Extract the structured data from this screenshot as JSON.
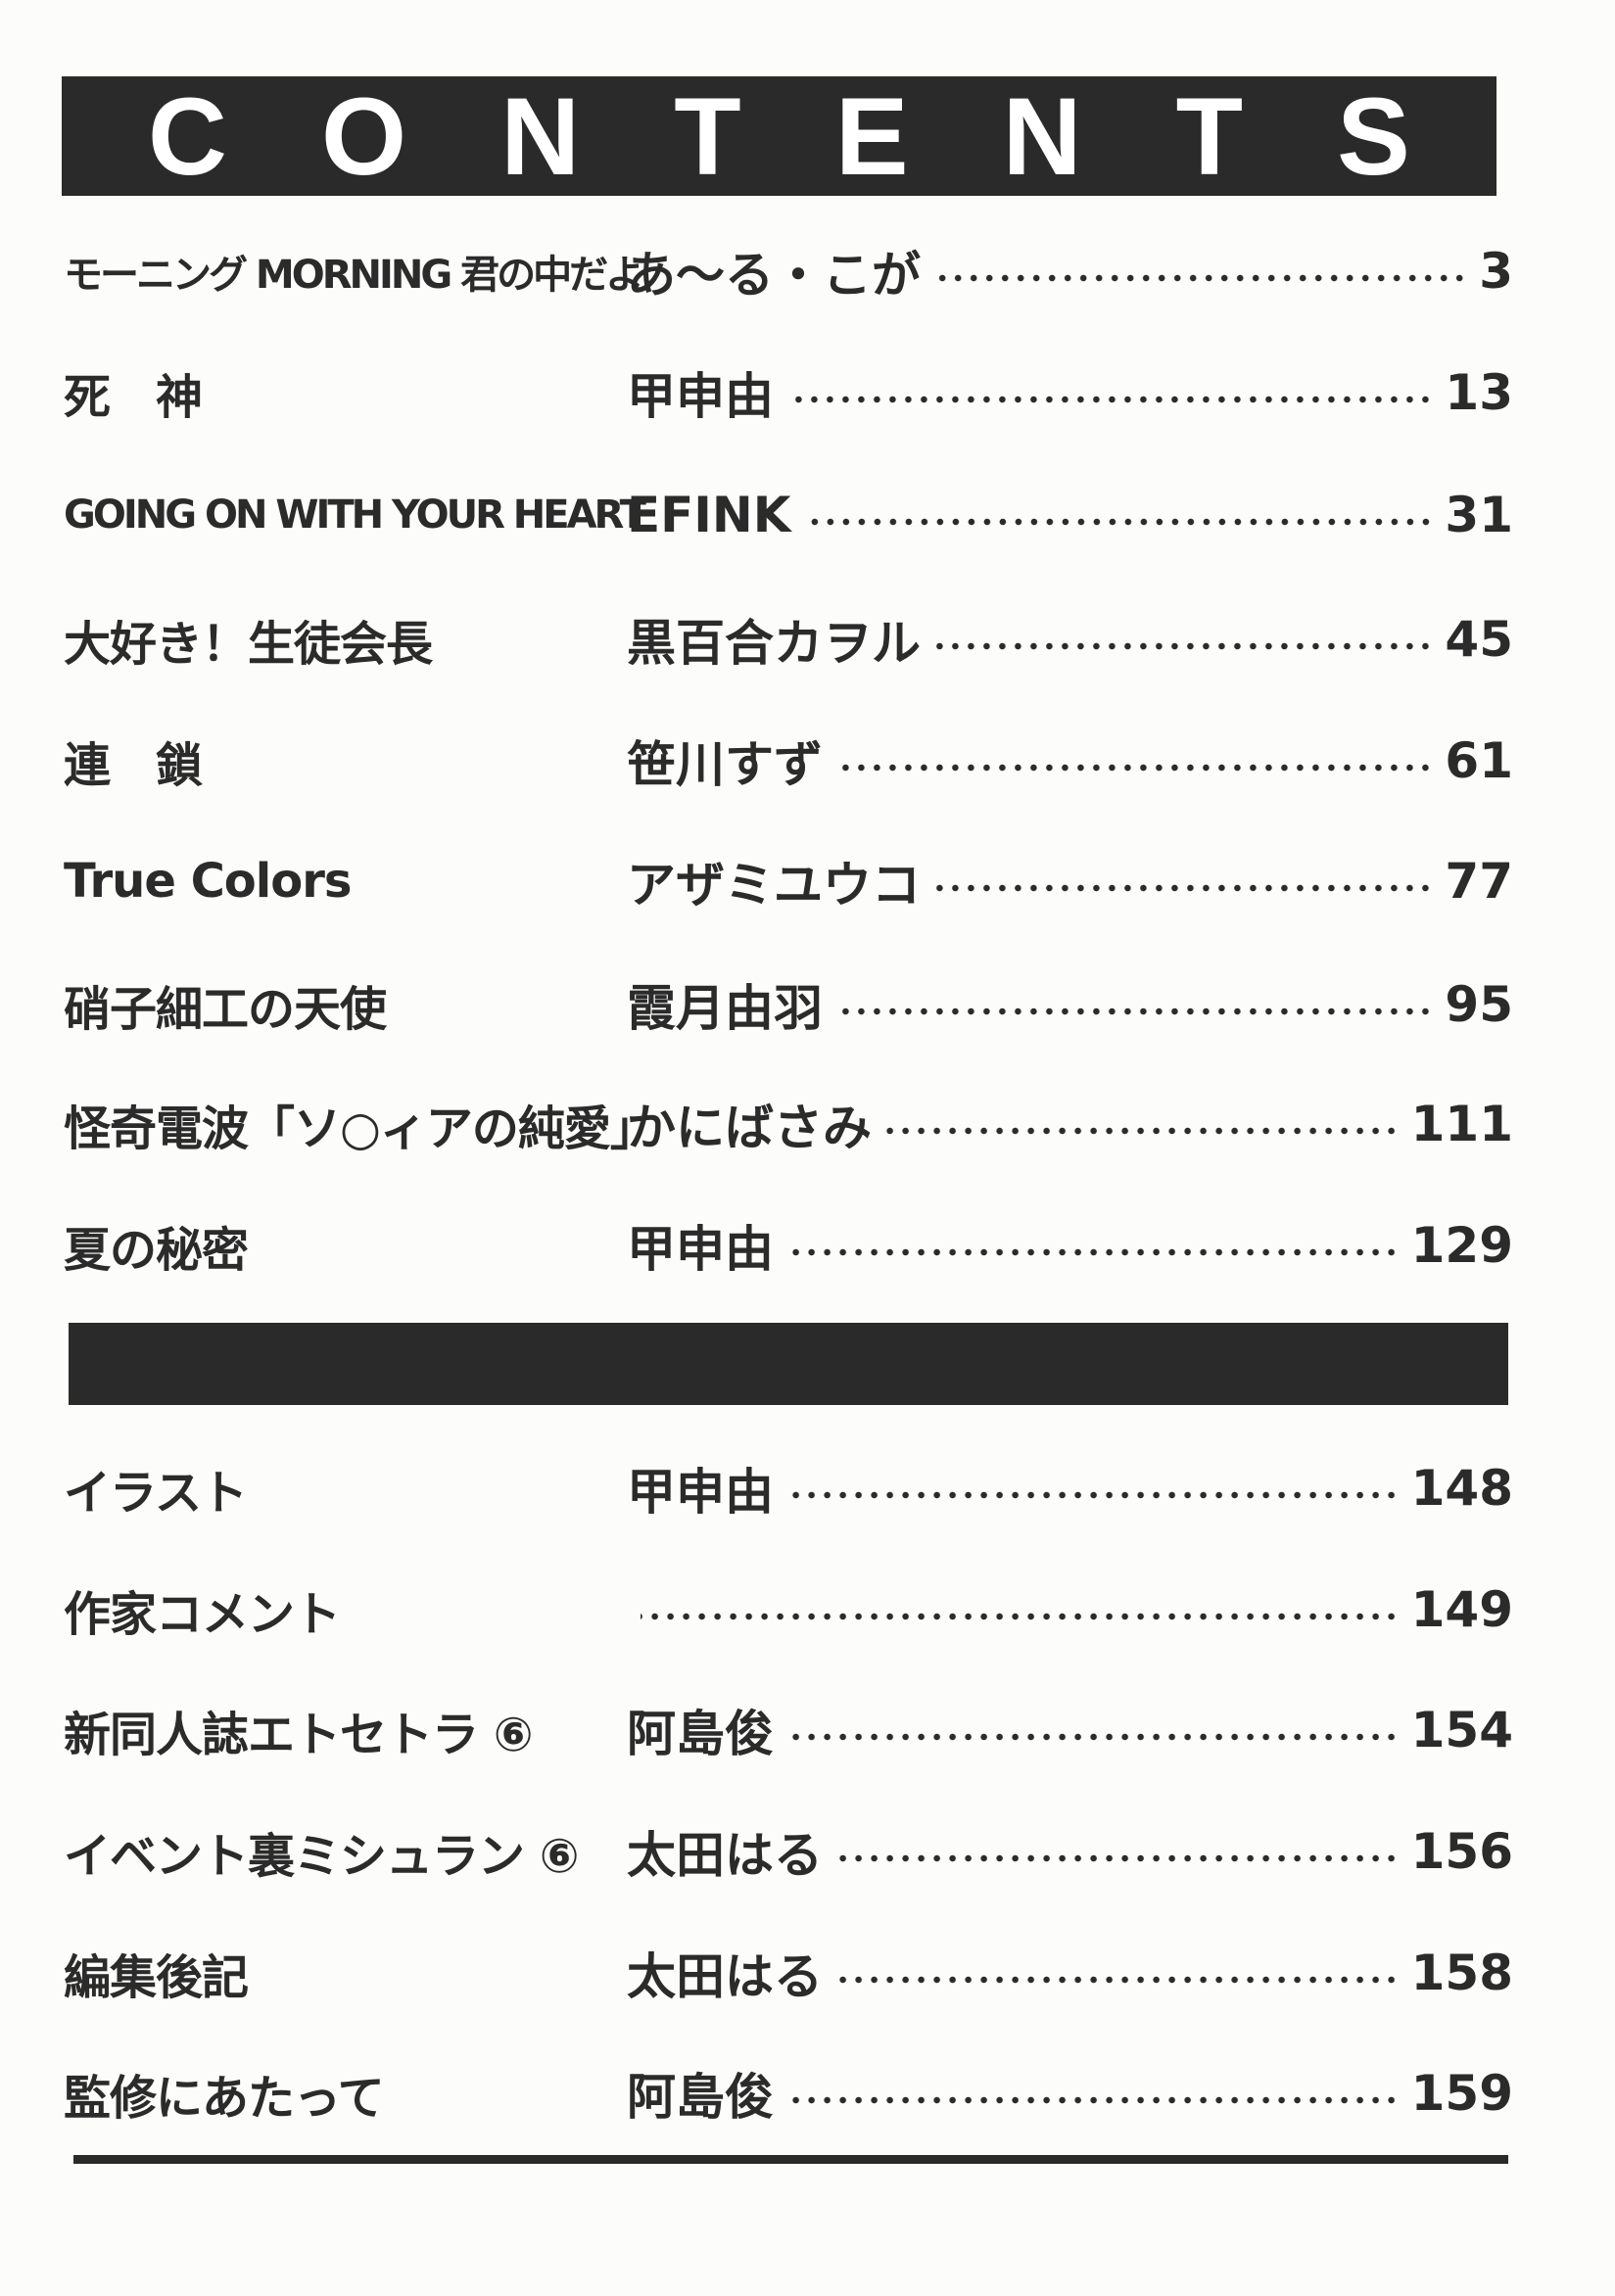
{
  "header": {
    "title_letters": [
      "C",
      "O",
      "N",
      "T",
      "E",
      "N",
      "T",
      "S"
    ]
  },
  "contents": [
    {
      "title": "モーニング MORNING 君の中だよ",
      "author": "あ～る・こが",
      "page": "3"
    },
    {
      "title": "死　神",
      "author": "甲申由",
      "page": "13"
    },
    {
      "title": "GOING ON WITH YOUR HEART",
      "author": "EFINK",
      "page": "31"
    },
    {
      "title": "大好き！生徒会長",
      "author": "黒百合カヲル",
      "page": "45"
    },
    {
      "title": "連　鎖",
      "author": "笹川すず",
      "page": "61"
    },
    {
      "title": "True Colors",
      "author": "アザミユウコ",
      "page": "77"
    },
    {
      "title": "硝子細工の天使",
      "author": "霞月由羽",
      "page": "95"
    },
    {
      "title": "怪奇電波「ソ○ィアの純愛」",
      "author": "かにばさみ",
      "page": "111"
    },
    {
      "title": "夏の秘密",
      "author": "甲申由",
      "page": "129"
    }
  ],
  "extras": [
    {
      "title": "イラスト",
      "author": "甲申由",
      "page": "148"
    },
    {
      "title": "作家コメント",
      "author": "",
      "page": "149"
    },
    {
      "title": "新同人誌エトセトラ ⑥",
      "author": "阿島俊",
      "page": "154"
    },
    {
      "title": "イベント裏ミシュラン ⑥",
      "author": "太田はる",
      "page": "156"
    },
    {
      "title": "編集後記",
      "author": "太田はる",
      "page": "158"
    },
    {
      "title": "監修にあたって",
      "author": "阿島俊",
      "page": "159"
    }
  ]
}
